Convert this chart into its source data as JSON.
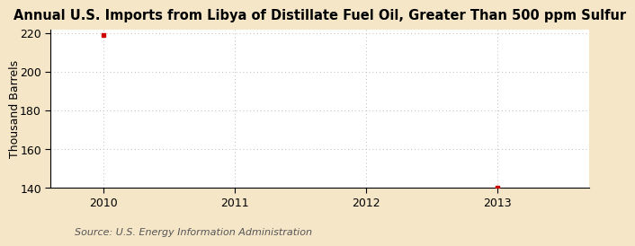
{
  "title": "Annual U.S. Imports from Libya of Distillate Fuel Oil, Greater Than 500 ppm Sulfur",
  "ylabel": "Thousand Barrels",
  "source_text": "Source: U.S. Energy Information Administration",
  "figure_bg_color": "#f5e6c8",
  "axes_bg_color": "#ffffff",
  "data_points": {
    "x": [
      2010,
      2013
    ],
    "y": [
      219,
      140
    ]
  },
  "xlim": [
    2009.6,
    2013.7
  ],
  "ylim": [
    140,
    222
  ],
  "yticks": [
    140,
    160,
    180,
    200,
    220
  ],
  "xticks": [
    2010,
    2011,
    2012,
    2013
  ],
  "marker_color": "#cc0000",
  "grid_color": "#bbbbbb",
  "spine_color": "#000000",
  "title_fontsize": 10.5,
  "axis_fontsize": 9,
  "ylabel_fontsize": 9,
  "source_fontsize": 8,
  "tick_color": "#000000"
}
